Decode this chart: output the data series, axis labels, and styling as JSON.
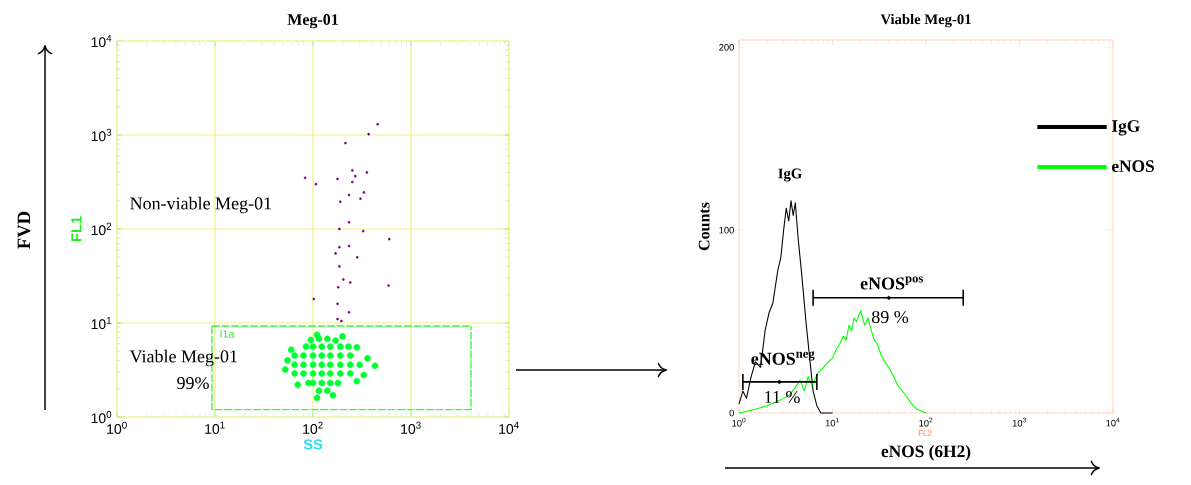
{
  "chart_data": [
    {
      "type": "scatter",
      "title": "Meg-01",
      "xlabel": "SS",
      "ylabel": "FL1",
      "log": "xy",
      "grid": true,
      "marker": "circle",
      "xlim": [
        1,
        10000
      ],
      "ylim": [
        1,
        10000
      ],
      "xticks": [
        {
          "value": 1,
          "label": "10$^{0}$"
        },
        {
          "value": 10,
          "label": "10$^{1}$"
        },
        {
          "value": 100,
          "label": "10$^{2}$"
        },
        {
          "value": 1000,
          "label": "10$^{3}$"
        },
        {
          "value": 10000,
          "label": "10$^{4}$"
        }
      ],
      "yticks": [
        {
          "value": 1,
          "label": "10$^{0}$"
        },
        {
          "value": 10,
          "label": "10$^{1}$"
        },
        {
          "value": 100,
          "label": "10$^{2}$"
        },
        {
          "value": 1000,
          "label": "10$^{3}$"
        },
        {
          "value": 10000,
          "label": "10$^{4}$"
        }
      ],
      "series": [
        {
          "color": "#00ff33",
          "x": [
            123,
            100,
            150,
            80,
            190,
            65,
            240,
            300,
            123,
            100,
            150,
            80,
            190,
            240,
            65,
            123,
            100,
            150,
            80,
            190,
            240,
            65,
            123,
            100,
            150,
            85,
            190,
            230,
            123,
            100,
            150,
            90,
            180,
            115,
            140,
            170,
            95,
            115,
            140,
            160,
            110,
            55,
            52,
            360,
            430,
            330,
            280,
            60,
            280,
            70,
            200,
            110
          ],
          "values": [
            3.6,
            3.6,
            3.6,
            3.6,
            3.6,
            3.6,
            3.6,
            3.6,
            4.5,
            4.5,
            4.5,
            4.5,
            4.5,
            4.5,
            4.5,
            2.9,
            2.9,
            2.9,
            2.9,
            2.9,
            2.9,
            2.9,
            5.6,
            5.6,
            5.6,
            5.6,
            5.6,
            5.6,
            2.3,
            2.3,
            2.3,
            2.3,
            2.3,
            6.8,
            6.8,
            6.5,
            6.6,
            1.9,
            1.9,
            1.7,
            1.6,
            4.0,
            3.2,
            4.2,
            3.5,
            2.8,
            5.5,
            5.2,
            2.4,
            2.2,
            7.2,
            7.5
          ]
        },
        {
          "color": "#800080",
          "x": [
            457,
            214,
            370,
            83,
            107,
            178,
            252,
            355,
            233,
            330,
            305,
            190,
            233,
            186,
            325,
            600,
            186,
            233,
            170,
            283,
            186,
            204,
            240,
            181,
            590,
            102,
            178,
            233,
            178,
            195,
            252,
            270
          ],
          "values": [
            1300,
            820,
            1020,
            350,
            300,
            340,
            420,
            400,
            230,
            245,
            210,
            195,
            118,
            100,
            95,
            78,
            64,
            66,
            55,
            50,
            40,
            29,
            27,
            24,
            25,
            18,
            16,
            13,
            11,
            10.5,
            316,
            365
          ]
        },
        {
          "type": "line",
          "line_style": "dashed",
          "marker": "none",
          "color": "#33ff33",
          "x": [
            9.3,
            9.3,
            4100,
            4100
          ],
          "values": [
            9.3,
            1.2,
            1.2,
            9.3
          ]
        },
        {
          "type": "line",
          "line_style": "dashed",
          "marker": "none",
          "color": "#33ff33",
          "x": [
            9.3,
            4100
          ],
          "values": [
            9.3,
            9.3
          ]
        }
      ],
      "annotations": [
        "FVD",
        "Non-viable Meg-01",
        "Viable Meg-01",
        "99%",
        "I1a"
      ]
    },
    {
      "type": "line",
      "title": "Viable Meg-01",
      "xlabel": "eNOS (6H2)",
      "ylabel": "Counts",
      "log": "x",
      "legend": "top right",
      "xlim": [
        1,
        10000
      ],
      "ylim": [
        0,
        204
      ],
      "xticks": [
        {
          "value": 1,
          "label": "10$^{0}$"
        },
        {
          "value": 10,
          "label": "10$^{1}$"
        },
        {
          "value": 100,
          "label": "10$^{2}$"
        },
        {
          "value": 1000,
          "label": "10$^{3}$"
        },
        {
          "value": 10000,
          "label": "10$^{4}$"
        }
      ],
      "yticks": [
        0,
        100,
        200
      ],
      "series": [
        {
          "name": "IgG",
          "color": "#000000",
          "x": [
            1,
            1.1,
            1.2,
            1.35,
            1.5,
            1.7,
            1.9,
            2.1,
            2.3,
            2.6,
            2.8,
            3.0,
            3.2,
            3.4,
            3.6,
            3.8,
            4.0,
            4.3,
            4.7,
            5.2,
            5.7,
            6.2,
            6.8,
            7.5,
            10
          ],
          "values": [
            5,
            12,
            8,
            20,
            28,
            25,
            45,
            55,
            60,
            78,
            85,
            100,
            112,
            105,
            116,
            108,
            115,
            95,
            75,
            50,
            30,
            12,
            4,
            0,
            0
          ]
        },
        {
          "name": "eNOS",
          "color": "#00ff00",
          "x": [
            1,
            1.5,
            2,
            2.5,
            3,
            3.5,
            4,
            4.5,
            5,
            5.5,
            6,
            7,
            8,
            9,
            10,
            11,
            12,
            13,
            14,
            15,
            16,
            17,
            18,
            20,
            22,
            24,
            26,
            28,
            30,
            33,
            36,
            40,
            45,
            50,
            60,
            70,
            80,
            100
          ],
          "values": [
            0,
            2,
            4,
            6,
            8,
            10,
            14,
            18,
            12,
            20,
            15,
            22,
            25,
            28,
            30,
            35,
            38,
            42,
            40,
            48,
            45,
            52,
            50,
            56,
            48,
            52,
            45,
            40,
            38,
            32,
            28,
            25,
            20,
            15,
            10,
            5,
            2,
            0
          ]
        },
        {
          "type": "scatter",
          "marker": "circle",
          "color": "#000000",
          "x": [
            2.7,
            40
          ],
          "values": [
            17,
            63
          ],
          "xerrors": [
            [
              1.1,
              6.8
            ],
            [
              6.2,
              250
            ]
          ]
        }
      ],
      "annotations": [
        "FL2",
        "IgG",
        "eNOS$^{pos}$",
        "89 %",
        "eNOS$^{neg}$",
        "11 %"
      ]
    }
  ]
}
